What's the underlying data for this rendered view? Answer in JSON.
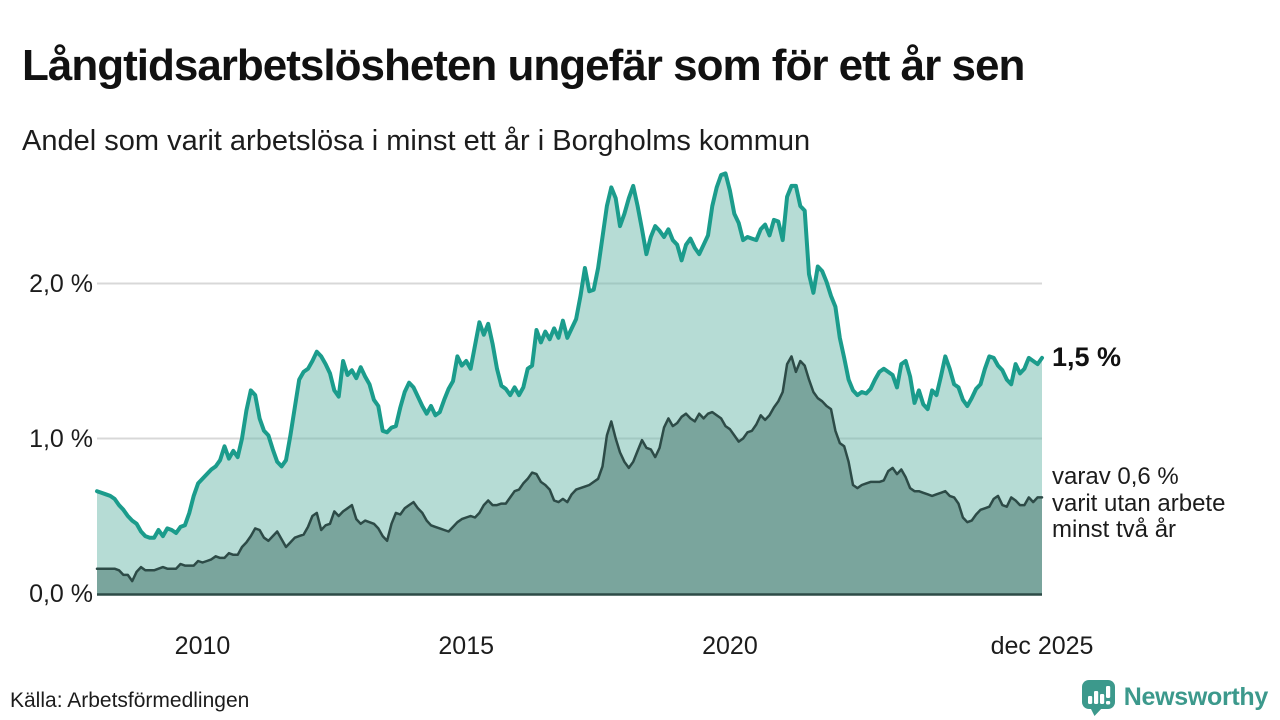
{
  "title": "Långtidsarbetslösheten ungefär som för ett år sen",
  "subtitle": "Andel som varit arbetslösa i minst ett år i Borgholms kommun",
  "source": "Källa: Arbetsförmedlingen",
  "logo": {
    "text": "Newsworthy",
    "color": "#3c998c"
  },
  "annotations": {
    "primary_end_value": "1,5 %",
    "secondary_end_text": "varav 0,6 %\nvarit utan arbete\nminst två år"
  },
  "chart_data": {
    "type": "area",
    "title": "Andel som varit arbetslösa i minst ett år i Borgholms kommun",
    "unit": "%",
    "frequency": "monthly",
    "x_start": "2008-01",
    "x_end": "2025-12",
    "ylim": [
      0,
      2.8
    ],
    "grid": true,
    "y_ticks": [
      {
        "label": "0,0 %",
        "value": 0.0
      },
      {
        "label": "1,0 %",
        "value": 1.0
      },
      {
        "label": "2,0 %",
        "value": 2.0
      }
    ],
    "x_ticks": [
      {
        "label": "2010",
        "month_index": 24
      },
      {
        "label": "2015",
        "month_index": 84
      },
      {
        "label": "2020",
        "month_index": 144
      },
      {
        "label": "dec 2025",
        "month_index": 215
      }
    ],
    "series": [
      {
        "name": "Arbetslösa minst ett år",
        "color": "#1b9c8c",
        "fill": "rgba(109,185,172,0.5)",
        "stroke_width": 4,
        "values": [
          0.66,
          0.65,
          0.64,
          0.63,
          0.61,
          0.57,
          0.54,
          0.5,
          0.47,
          0.45,
          0.4,
          0.37,
          0.36,
          0.36,
          0.41,
          0.37,
          0.42,
          0.41,
          0.39,
          0.43,
          0.44,
          0.52,
          0.63,
          0.71,
          0.74,
          0.77,
          0.8,
          0.82,
          0.86,
          0.95,
          0.87,
          0.92,
          0.88,
          1.0,
          1.18,
          1.31,
          1.28,
          1.13,
          1.05,
          1.02,
          0.93,
          0.85,
          0.82,
          0.86,
          1.02,
          1.2,
          1.38,
          1.43,
          1.45,
          1.5,
          1.56,
          1.53,
          1.48,
          1.42,
          1.31,
          1.27,
          1.5,
          1.41,
          1.44,
          1.39,
          1.46,
          1.4,
          1.35,
          1.25,
          1.21,
          1.05,
          1.04,
          1.07,
          1.08,
          1.2,
          1.3,
          1.36,
          1.33,
          1.27,
          1.21,
          1.16,
          1.21,
          1.15,
          1.17,
          1.25,
          1.32,
          1.37,
          1.53,
          1.47,
          1.5,
          1.45,
          1.6,
          1.75,
          1.67,
          1.74,
          1.61,
          1.45,
          1.34,
          1.32,
          1.28,
          1.33,
          1.28,
          1.33,
          1.45,
          1.47,
          1.7,
          1.62,
          1.69,
          1.64,
          1.71,
          1.65,
          1.76,
          1.65,
          1.71,
          1.77,
          1.92,
          2.1,
          1.95,
          1.96,
          2.1,
          2.3,
          2.5,
          2.62,
          2.55,
          2.37,
          2.45,
          2.55,
          2.63,
          2.5,
          2.35,
          2.19,
          2.3,
          2.37,
          2.34,
          2.3,
          2.35,
          2.28,
          2.25,
          2.15,
          2.25,
          2.29,
          2.23,
          2.19,
          2.25,
          2.31,
          2.5,
          2.62,
          2.7,
          2.71,
          2.6,
          2.45,
          2.39,
          2.28,
          2.3,
          2.29,
          2.28,
          2.35,
          2.38,
          2.31,
          2.41,
          2.4,
          2.28,
          2.56,
          2.63,
          2.63,
          2.5,
          2.47,
          2.06,
          1.94,
          2.11,
          2.08,
          2.01,
          1.92,
          1.85,
          1.65,
          1.52,
          1.38,
          1.31,
          1.28,
          1.3,
          1.29,
          1.32,
          1.38,
          1.43,
          1.45,
          1.43,
          1.41,
          1.33,
          1.48,
          1.5,
          1.4,
          1.23,
          1.31,
          1.22,
          1.19,
          1.31,
          1.28,
          1.4,
          1.53,
          1.45,
          1.35,
          1.33,
          1.25,
          1.21,
          1.26,
          1.32,
          1.35,
          1.45,
          1.53,
          1.52,
          1.47,
          1.44,
          1.38,
          1.35,
          1.48,
          1.42,
          1.45,
          1.52,
          1.5,
          1.48,
          1.52
        ]
      },
      {
        "name": "varav arbetslösa minst två år",
        "color": "#2d4b47",
        "fill": "#7aa59d",
        "stroke_width": 2.5,
        "values": [
          0.16,
          0.16,
          0.16,
          0.16,
          0.16,
          0.15,
          0.12,
          0.12,
          0.08,
          0.14,
          0.17,
          0.15,
          0.15,
          0.15,
          0.16,
          0.17,
          0.16,
          0.16,
          0.16,
          0.19,
          0.18,
          0.18,
          0.18,
          0.21,
          0.2,
          0.21,
          0.22,
          0.24,
          0.23,
          0.23,
          0.26,
          0.25,
          0.25,
          0.3,
          0.33,
          0.37,
          0.42,
          0.41,
          0.36,
          0.34,
          0.37,
          0.4,
          0.35,
          0.3,
          0.33,
          0.36,
          0.37,
          0.38,
          0.43,
          0.5,
          0.52,
          0.41,
          0.44,
          0.45,
          0.53,
          0.5,
          0.53,
          0.55,
          0.57,
          0.48,
          0.45,
          0.47,
          0.46,
          0.45,
          0.42,
          0.37,
          0.34,
          0.45,
          0.52,
          0.51,
          0.55,
          0.57,
          0.59,
          0.55,
          0.52,
          0.47,
          0.44,
          0.43,
          0.42,
          0.41,
          0.4,
          0.43,
          0.46,
          0.48,
          0.49,
          0.5,
          0.49,
          0.52,
          0.57,
          0.6,
          0.57,
          0.57,
          0.58,
          0.58,
          0.62,
          0.66,
          0.67,
          0.71,
          0.74,
          0.78,
          0.77,
          0.72,
          0.7,
          0.67,
          0.6,
          0.59,
          0.61,
          0.59,
          0.64,
          0.67,
          0.68,
          0.69,
          0.7,
          0.72,
          0.74,
          0.82,
          1.02,
          1.11,
          1.0,
          0.91,
          0.85,
          0.81,
          0.85,
          0.92,
          0.99,
          0.94,
          0.93,
          0.88,
          0.94,
          1.07,
          1.13,
          1.08,
          1.1,
          1.14,
          1.16,
          1.13,
          1.11,
          1.16,
          1.13,
          1.16,
          1.17,
          1.15,
          1.13,
          1.08,
          1.06,
          1.02,
          0.98,
          1.0,
          1.04,
          1.05,
          1.09,
          1.15,
          1.12,
          1.15,
          1.2,
          1.24,
          1.3,
          1.48,
          1.53,
          1.43,
          1.5,
          1.47,
          1.38,
          1.3,
          1.26,
          1.24,
          1.21,
          1.19,
          1.05,
          0.97,
          0.95,
          0.85,
          0.7,
          0.68,
          0.7,
          0.71,
          0.72,
          0.72,
          0.72,
          0.73,
          0.79,
          0.81,
          0.77,
          0.8,
          0.75,
          0.68,
          0.66,
          0.66,
          0.65,
          0.64,
          0.63,
          0.64,
          0.65,
          0.66,
          0.63,
          0.62,
          0.58,
          0.49,
          0.46,
          0.47,
          0.51,
          0.54,
          0.55,
          0.56,
          0.61,
          0.63,
          0.57,
          0.56,
          0.62,
          0.6,
          0.57,
          0.57,
          0.62,
          0.59,
          0.62,
          0.62
        ]
      }
    ],
    "style": {
      "gridline_color": "#d8d8d8",
      "baseline_color": "#2d4b47",
      "background": "#ffffff"
    }
  }
}
